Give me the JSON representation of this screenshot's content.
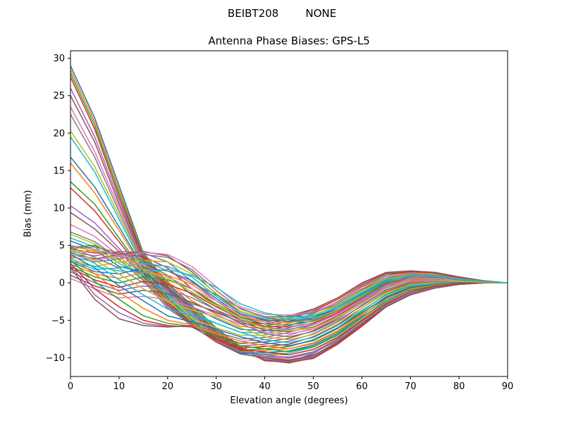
{
  "figure": {
    "suptitle": "BEIBT208        NONE"
  },
  "chart_data": {
    "type": "line",
    "title": "Antenna Phase Biases: GPS-L5",
    "xlabel": "Elevation angle (degrees)",
    "ylabel": "Bias (mm)",
    "xlim": [
      0,
      90
    ],
    "ylim": [
      -12.5,
      31
    ],
    "xticks": [
      "0",
      "10",
      "20",
      "30",
      "40",
      "50",
      "60",
      "70",
      "80",
      "90"
    ],
    "yticks": [
      "−10",
      "−5",
      "0",
      "5",
      "10",
      "15",
      "20",
      "25",
      "30"
    ],
    "ytick_values": [
      -10,
      -5,
      0,
      5,
      10,
      15,
      20,
      25,
      30
    ],
    "xtick_values": [
      0,
      10,
      20,
      30,
      40,
      50,
      60,
      70,
      80,
      90
    ],
    "x": [
      0,
      5,
      10,
      15,
      20,
      25,
      30,
      35,
      40,
      45,
      50,
      55,
      60,
      65,
      70,
      75,
      80,
      85,
      90
    ],
    "grid": false,
    "colors": [
      "#1f77b4",
      "#ff7f0e",
      "#2ca02c",
      "#d62728",
      "#9467bd",
      "#8c564b",
      "#e377c2",
      "#7f7f7f",
      "#bcbd22",
      "#17becf"
    ],
    "series": [
      {
        "values": [
          29.0,
          22.0,
          13.0,
          4.0,
          0.0,
          -3.0,
          -6.0,
          -8.5,
          -10.0,
          -10.5,
          -9.5,
          -7.5,
          -5.0,
          -2.5,
          -1.0,
          -0.4,
          -0.1,
          0.0,
          0.0
        ]
      },
      {
        "values": [
          28.5,
          21.5,
          12.5,
          3.8,
          -0.2,
          -3.2,
          -6.2,
          -8.6,
          -10.2,
          -10.6,
          -9.8,
          -7.8,
          -5.3,
          -2.8,
          -1.2,
          -0.5,
          -0.1,
          0.0,
          0.0
        ]
      },
      {
        "values": [
          28.0,
          21.0,
          12.0,
          3.6,
          -0.4,
          -3.4,
          -6.4,
          -8.7,
          -10.3,
          -10.7,
          -10.0,
          -8.0,
          -5.6,
          -3.0,
          -1.4,
          -0.6,
          -0.2,
          0.0,
          0.0
        ]
      },
      {
        "values": [
          27.5,
          20.5,
          11.5,
          3.4,
          -0.6,
          -3.6,
          -6.6,
          -8.8,
          -10.4,
          -10.6,
          -10.1,
          -8.2,
          -5.8,
          -3.2,
          -1.6,
          -0.7,
          -0.2,
          0.0,
          0.0
        ]
      },
      {
        "values": [
          26.0,
          19.5,
          11.0,
          3.2,
          -0.8,
          -3.8,
          -6.8,
          -9.0,
          -10.2,
          -10.5,
          -9.9,
          -8.0,
          -5.6,
          -3.1,
          -1.5,
          -0.6,
          -0.2,
          0.0,
          0.0
        ]
      },
      {
        "values": [
          25.0,
          18.8,
          10.5,
          3.0,
          -1.0,
          -4.0,
          -7.0,
          -9.1,
          -10.0,
          -10.3,
          -9.7,
          -7.9,
          -5.5,
          -3.0,
          -1.4,
          -0.6,
          -0.2,
          0.0,
          0.0
        ]
      },
      {
        "values": [
          23.5,
          17.5,
          10.0,
          2.8,
          -1.2,
          -4.2,
          -7.2,
          -9.2,
          -9.9,
          -10.1,
          -9.4,
          -7.7,
          -5.3,
          -2.9,
          -1.3,
          -0.5,
          -0.1,
          0.0,
          0.0
        ]
      },
      {
        "values": [
          22.5,
          16.8,
          9.5,
          2.6,
          -1.4,
          -4.4,
          -7.4,
          -9.3,
          -9.8,
          -9.9,
          -9.2,
          -7.5,
          -5.1,
          -2.7,
          -1.2,
          -0.5,
          -0.1,
          0.0,
          0.0
        ]
      },
      {
        "values": [
          20.3,
          15.5,
          9.0,
          2.4,
          -1.6,
          -4.6,
          -7.6,
          -9.4,
          -9.6,
          -9.6,
          -8.9,
          -7.2,
          -4.9,
          -2.5,
          -1.0,
          -0.4,
          -0.1,
          0.0,
          0.0
        ]
      },
      {
        "values": [
          19.5,
          14.8,
          8.5,
          2.2,
          -1.8,
          -4.8,
          -7.8,
          -9.5,
          -9.5,
          -9.4,
          -8.6,
          -7.0,
          -4.7,
          -2.3,
          -0.9,
          -0.3,
          -0.1,
          0.0,
          0.0
        ]
      },
      {
        "values": [
          16.8,
          12.8,
          7.5,
          2.0,
          -2.0,
          -5.0,
          -7.9,
          -9.4,
          -9.3,
          -9.1,
          -8.3,
          -6.7,
          -4.4,
          -2.0,
          -0.7,
          -0.2,
          0.0,
          0.0,
          0.0
        ]
      },
      {
        "values": [
          16.0,
          12.0,
          7.0,
          1.8,
          -2.2,
          -5.2,
          -7.8,
          -9.2,
          -9.0,
          -8.8,
          -8.0,
          -6.4,
          -4.1,
          -1.8,
          -0.5,
          -0.1,
          0.0,
          0.0,
          0.0
        ]
      },
      {
        "values": [
          13.5,
          10.5,
          6.0,
          1.5,
          -2.4,
          -5.4,
          -7.6,
          -9.0,
          -8.8,
          -8.5,
          -7.6,
          -6.0,
          -3.8,
          -1.5,
          -0.3,
          0.0,
          0.0,
          0.0,
          0.0
        ]
      },
      {
        "values": [
          12.7,
          9.6,
          5.5,
          1.3,
          -2.6,
          -5.5,
          -7.4,
          -8.7,
          -8.5,
          -8.2,
          -7.2,
          -5.6,
          -3.4,
          -1.2,
          -0.1,
          0.1,
          0.1,
          0.0,
          0.0
        ]
      },
      {
        "values": [
          10.3,
          8.0,
          4.6,
          1.0,
          -2.8,
          -5.6,
          -7.2,
          -8.4,
          -8.2,
          -7.8,
          -6.8,
          -5.2,
          -3.0,
          -0.9,
          0.1,
          0.2,
          0.1,
          0.0,
          0.0
        ]
      },
      {
        "values": [
          9.4,
          7.2,
          4.2,
          0.8,
          -3.0,
          -5.7,
          -7.0,
          -8.1,
          -7.9,
          -7.4,
          -6.4,
          -4.8,
          -2.7,
          -0.6,
          0.3,
          0.3,
          0.2,
          0.0,
          0.0
        ]
      },
      {
        "values": [
          7.8,
          6.2,
          3.6,
          0.5,
          -3.2,
          -5.8,
          -6.8,
          -7.8,
          -7.6,
          -7.0,
          -6.0,
          -4.4,
          -2.3,
          -0.3,
          0.5,
          0.4,
          0.2,
          0.0,
          0.0
        ]
      },
      {
        "values": [
          6.8,
          5.5,
          3.2,
          0.3,
          -3.4,
          -5.6,
          -6.6,
          -7.5,
          -7.3,
          -6.6,
          -5.6,
          -4.0,
          -2.0,
          0.0,
          0.7,
          0.5,
          0.3,
          0.1,
          0.0
        ]
      },
      {
        "values": [
          6.5,
          5.2,
          3.0,
          0.6,
          -2.5,
          -4.8,
          -6.0,
          -7.0,
          -7.0,
          -6.3,
          -5.3,
          -3.7,
          -1.7,
          0.2,
          0.9,
          0.7,
          0.3,
          0.1,
          0.0
        ]
      },
      {
        "values": [
          6.0,
          4.8,
          2.6,
          1.0,
          -1.6,
          -4.0,
          -5.4,
          -6.6,
          -6.7,
          -6.0,
          -5.0,
          -3.4,
          -1.4,
          0.4,
          1.1,
          0.9,
          0.4,
          0.1,
          0.0
        ]
      },
      {
        "values": [
          5.6,
          4.4,
          2.2,
          1.4,
          -0.8,
          -3.2,
          -4.8,
          -6.2,
          -6.4,
          -5.7,
          -4.7,
          -3.1,
          -1.1,
          0.6,
          1.3,
          1.1,
          0.5,
          0.1,
          0.0
        ]
      },
      {
        "values": [
          5.0,
          4.2,
          3.8,
          2.0,
          0.2,
          -2.4,
          -4.2,
          -5.8,
          -6.1,
          -5.4,
          -4.4,
          -2.8,
          -0.8,
          0.8,
          1.4,
          1.2,
          0.6,
          0.2,
          0.0
        ]
      },
      {
        "values": [
          4.8,
          5.0,
          3.5,
          2.8,
          1.0,
          -1.6,
          -3.6,
          -5.4,
          -5.8,
          -5.1,
          -4.1,
          -2.5,
          -0.5,
          1.0,
          1.5,
          1.3,
          0.6,
          0.2,
          0.0
        ]
      },
      {
        "values": [
          4.5,
          4.0,
          4.0,
          3.5,
          2.0,
          -0.8,
          -3.0,
          -5.0,
          -5.5,
          -4.8,
          -3.8,
          -2.2,
          -0.3,
          1.2,
          1.5,
          1.4,
          0.7,
          0.2,
          0.0
        ]
      },
      {
        "values": [
          4.2,
          3.6,
          4.2,
          4.0,
          2.8,
          0.2,
          -2.4,
          -4.6,
          -5.2,
          -4.6,
          -3.6,
          -2.0,
          -0.1,
          1.3,
          1.6,
          1.4,
          0.8,
          0.3,
          0.0
        ]
      },
      {
        "values": [
          4.0,
          3.2,
          3.8,
          4.2,
          3.6,
          1.5,
          -1.5,
          -4.0,
          -4.9,
          -4.4,
          -3.5,
          -2.0,
          0.0,
          1.4,
          1.6,
          1.4,
          0.8,
          0.3,
          0.0
        ]
      },
      {
        "values": [
          3.8,
          3.0,
          3.6,
          4.1,
          3.8,
          2.2,
          -0.5,
          -3.2,
          -4.2,
          -4.3,
          -3.9,
          -2.6,
          -0.6,
          0.8,
          1.2,
          1.1,
          0.6,
          0.2,
          0.0
        ]
      },
      {
        "values": [
          3.5,
          2.8,
          3.2,
          3.8,
          3.4,
          1.8,
          -1.0,
          -3.5,
          -4.5,
          -4.5,
          -4.0,
          -2.8,
          -0.9,
          0.6,
          1.1,
          1.0,
          0.6,
          0.2,
          0.0
        ]
      },
      {
        "values": [
          3.2,
          2.2,
          2.8,
          3.0,
          2.8,
          1.2,
          -1.4,
          -3.8,
          -4.6,
          -4.7,
          -4.3,
          -3.0,
          -1.1,
          0.5,
          1.0,
          0.9,
          0.5,
          0.2,
          0.0
        ]
      },
      {
        "values": [
          3.0,
          1.8,
          2.0,
          2.6,
          2.2,
          0.8,
          -1.8,
          -4.0,
          -4.8,
          -4.9,
          -4.5,
          -3.2,
          -1.3,
          0.4,
          0.9,
          0.8,
          0.5,
          0.2,
          0.0
        ]
      },
      {
        "values": [
          2.8,
          1.5,
          1.2,
          2.0,
          1.6,
          0.3,
          -2.1,
          -4.2,
          -5.0,
          -5.1,
          -4.7,
          -3.4,
          -1.5,
          0.3,
          0.8,
          0.7,
          0.4,
          0.1,
          0.0
        ]
      },
      {
        "values": [
          2.5,
          1.2,
          0.6,
          1.4,
          1.0,
          -0.2,
          -2.4,
          -4.4,
          -5.2,
          -5.3,
          -4.9,
          -3.6,
          -1.7,
          0.2,
          0.7,
          0.6,
          0.4,
          0.1,
          0.0
        ]
      },
      {
        "values": [
          2.2,
          0.8,
          0.0,
          0.8,
          0.4,
          -0.8,
          -2.8,
          -4.6,
          -5.5,
          -5.6,
          -5.1,
          -3.8,
          -1.9,
          0.1,
          0.6,
          0.5,
          0.3,
          0.1,
          0.0
        ]
      },
      {
        "values": [
          2.0,
          0.4,
          -0.6,
          0.2,
          -0.2,
          -1.4,
          -3.2,
          -4.8,
          -5.8,
          -5.9,
          -5.4,
          -4.0,
          -2.1,
          -0.1,
          0.5,
          0.4,
          0.3,
          0.1,
          0.0
        ]
      },
      {
        "values": [
          1.5,
          0.0,
          -1.0,
          -0.4,
          -0.8,
          -2.0,
          -3.6,
          -5.0,
          -6.0,
          -6.2,
          -5.6,
          -4.2,
          -2.3,
          -0.3,
          0.4,
          0.3,
          0.2,
          0.1,
          0.0
        ]
      },
      {
        "values": [
          1.0,
          -0.4,
          -1.5,
          -1.0,
          -1.4,
          -2.6,
          -4.0,
          -5.2,
          -6.3,
          -6.5,
          -5.9,
          -4.4,
          -2.5,
          -0.5,
          0.3,
          0.2,
          0.2,
          0.1,
          0.0
        ]
      },
      {
        "values": [
          0.6,
          -0.8,
          -2.0,
          -1.8,
          -2.2,
          -3.2,
          -4.4,
          -5.5,
          -6.6,
          -6.8,
          -6.2,
          -4.7,
          -2.8,
          -0.7,
          0.2,
          0.2,
          0.1,
          0.0,
          0.0
        ]
      },
      {
        "values": [
          4.8,
          3.4,
          2.0,
          0.0,
          -1.5,
          -2.8,
          -3.8,
          -5.4,
          -6.8,
          -7.2,
          -6.5,
          -5.0,
          -3.1,
          -1.0,
          0.0,
          0.1,
          0.1,
          0.0,
          0.0
        ]
      },
      {
        "values": [
          4.5,
          3.0,
          1.2,
          -0.8,
          -2.5,
          -3.6,
          -4.6,
          -6.0,
          -7.2,
          -7.6,
          -6.9,
          -5.3,
          -3.4,
          -1.3,
          -0.2,
          0.0,
          0.0,
          0.0,
          0.0
        ]
      },
      {
        "values": [
          4.2,
          2.6,
          0.4,
          -1.6,
          -3.5,
          -4.4,
          -5.4,
          -6.6,
          -7.6,
          -8.0,
          -7.3,
          -5.7,
          -3.7,
          -1.6,
          -0.4,
          -0.1,
          0.0,
          0.0,
          0.0
        ]
      },
      {
        "values": [
          3.8,
          2.0,
          -0.4,
          -2.4,
          -4.4,
          -5.2,
          -6.2,
          -7.2,
          -8.0,
          -8.4,
          -7.7,
          -6.1,
          -4.0,
          -1.9,
          -0.6,
          -0.2,
          0.0,
          0.0,
          0.0
        ]
      },
      {
        "values": [
          3.4,
          1.2,
          -1.2,
          -3.4,
          -5.0,
          -5.6,
          -6.8,
          -7.8,
          -8.4,
          -8.8,
          -8.1,
          -6.5,
          -4.3,
          -2.2,
          -0.8,
          -0.3,
          -0.1,
          0.0,
          0.0
        ]
      },
      {
        "values": [
          3.0,
          0.2,
          -2.2,
          -4.4,
          -5.4,
          -5.8,
          -7.2,
          -8.4,
          -8.8,
          -9.2,
          -8.5,
          -6.9,
          -4.6,
          -2.5,
          -1.0,
          -0.4,
          -0.1,
          0.0,
          0.0
        ]
      },
      {
        "values": [
          2.6,
          -0.8,
          -3.2,
          -5.0,
          -5.7,
          -5.9,
          -7.6,
          -8.9,
          -9.2,
          -9.6,
          -8.9,
          -7.3,
          -5.0,
          -2.8,
          -1.2,
          -0.5,
          -0.1,
          0.0,
          0.0
        ]
      },
      {
        "values": [
          2.3,
          -1.6,
          -4.0,
          -5.4,
          -5.8,
          -5.8,
          -7.8,
          -9.2,
          -9.6,
          -10.0,
          -9.3,
          -7.7,
          -5.3,
          -3.0,
          -1.4,
          -0.6,
          -0.2,
          0.0,
          0.0
        ]
      },
      {
        "values": [
          2.0,
          -2.2,
          -4.8,
          -5.7,
          -5.9,
          -5.7,
          -7.9,
          -9.5,
          -10.0,
          -10.4,
          -9.7,
          -8.1,
          -5.6,
          -3.2,
          -1.6,
          -0.7,
          -0.2,
          0.0,
          0.0
        ]
      },
      {
        "values": [
          5.0,
          4.5,
          3.6,
          2.4,
          0.8,
          -0.8,
          -2.4,
          -4.0,
          -5.2,
          -5.8,
          -5.5,
          -4.2,
          -2.4,
          -0.5,
          0.6,
          0.6,
          0.3,
          0.1,
          0.0
        ]
      },
      {
        "values": [
          4.6,
          4.8,
          4.0,
          3.0,
          1.6,
          0.0,
          -1.6,
          -3.4,
          -4.6,
          -5.2,
          -4.9,
          -3.8,
          -2.0,
          -0.2,
          0.8,
          0.8,
          0.4,
          0.1,
          0.0
        ]
      },
      {
        "values": [
          4.0,
          4.4,
          3.0,
          1.8,
          0.6,
          -1.2,
          -3.0,
          -4.8,
          -6.0,
          -6.4,
          -6.0,
          -4.6,
          -2.7,
          -0.7,
          0.4,
          0.4,
          0.2,
          0.1,
          0.0
        ]
      },
      {
        "values": [
          2.8,
          2.2,
          1.6,
          1.4,
          1.8,
          1.0,
          -0.6,
          -2.8,
          -4.0,
          -4.6,
          -4.4,
          -3.4,
          -1.6,
          0.2,
          1.0,
          0.9,
          0.5,
          0.2,
          0.0
        ]
      }
    ]
  }
}
